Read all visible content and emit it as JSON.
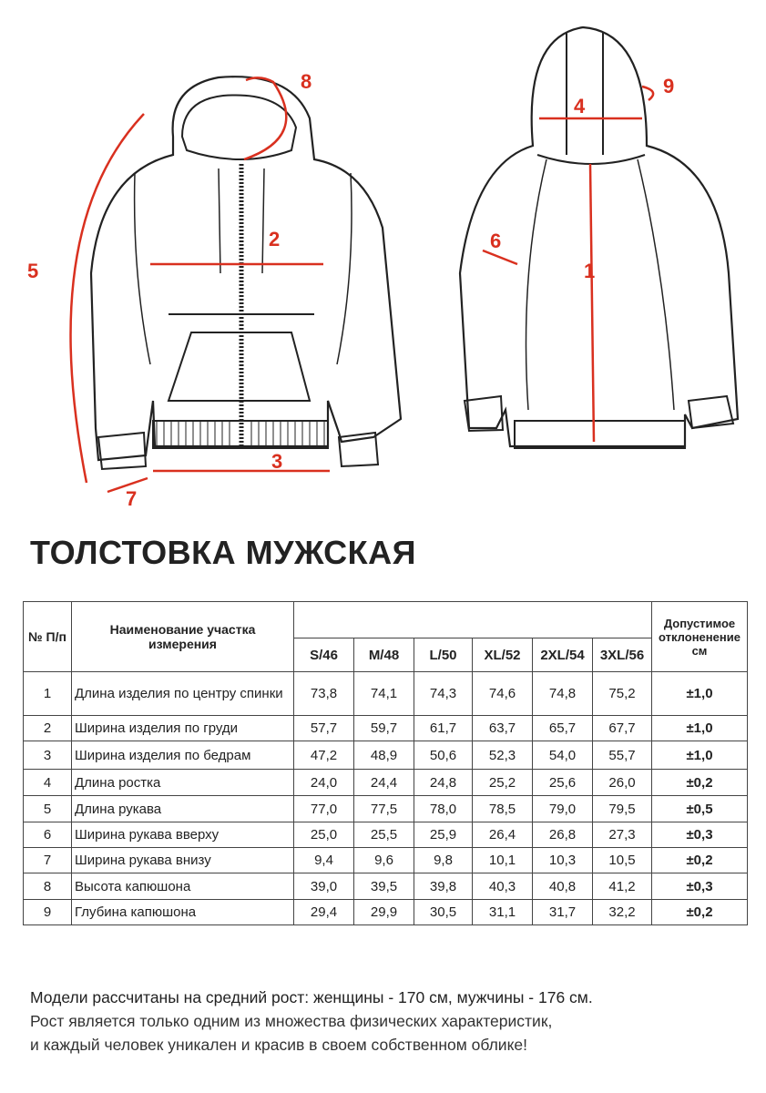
{
  "labels": [
    "1",
    "2",
    "3",
    "4",
    "5",
    "6",
    "7",
    "8",
    "9"
  ],
  "colors": {
    "accent": "#d9301f",
    "line": "#222222"
  },
  "title": "ТОЛСТОВКА МУЖСКАЯ",
  "table": {
    "headers": {
      "num": "№ П/п",
      "name": "Наименование участка измерения",
      "sizes": [
        "S/46",
        "M/48",
        "L/50",
        "XL/52",
        "2XL/54",
        "3XL/56"
      ],
      "tolerance": "Допустимое отклоненение см"
    },
    "rows": [
      {
        "n": "1",
        "name": "Длина изделия по центру спинки",
        "v": [
          "73,8",
          "74,1",
          "74,3",
          "74,6",
          "74,8",
          "75,2"
        ],
        "tol": "±1,0"
      },
      {
        "n": "2",
        "name": "Ширина изделия по груди",
        "v": [
          "57,7",
          "59,7",
          "61,7",
          "63,7",
          "65,7",
          "67,7"
        ],
        "tol": "±1,0"
      },
      {
        "n": "3",
        "name": "Ширина изделия по бедрам",
        "v": [
          "47,2",
          "48,9",
          "50,6",
          "52,3",
          "54,0",
          "55,7"
        ],
        "tol": "±1,0"
      },
      {
        "n": "4",
        "name": "Длина ростка",
        "v": [
          "24,0",
          "24,4",
          "24,8",
          "25,2",
          "25,6",
          "26,0"
        ],
        "tol": "±0,2"
      },
      {
        "n": "5",
        "name": "Длина рукава",
        "v": [
          "77,0",
          "77,5",
          "78,0",
          "78,5",
          "79,0",
          "79,5"
        ],
        "tol": "±0,5"
      },
      {
        "n": "6",
        "name": "Ширина рукава вверху",
        "v": [
          "25,0",
          "25,5",
          "25,9",
          "26,4",
          "26,8",
          "27,3"
        ],
        "tol": "±0,3"
      },
      {
        "n": "7",
        "name": "Ширина рукава внизу",
        "v": [
          "9,4",
          "9,6",
          "9,8",
          "10,1",
          "10,3",
          "10,5"
        ],
        "tol": "±0,2"
      },
      {
        "n": "8",
        "name": "Высота капюшона",
        "v": [
          "39,0",
          "39,5",
          "39,8",
          "40,3",
          "40,8",
          "41,2"
        ],
        "tol": "±0,3"
      },
      {
        "n": "9",
        "name": "Глубина капюшона",
        "v": [
          "29,4",
          "29,9",
          "30,5",
          "31,1",
          "31,7",
          "32,2"
        ],
        "tol": "±0,2"
      }
    ]
  },
  "notes": [
    "Модели рассчитаны на средний рост: женщины - 170 см, мужчины - 176 см.",
    "Рост является только одним из множества физических характеристик,",
    "и каждый человек уникален и красив в своем собственном облике!"
  ]
}
